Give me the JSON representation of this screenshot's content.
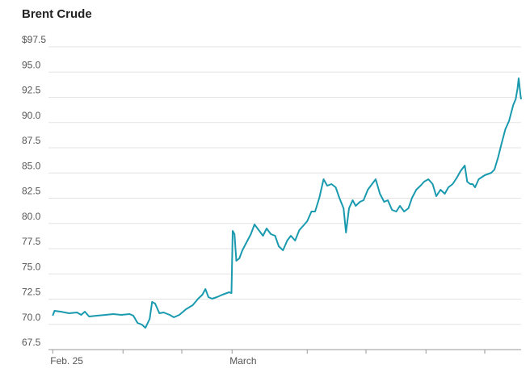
{
  "chart_data": {
    "type": "line",
    "title": "Brent Crude",
    "x": [
      0,
      0.03,
      0.13,
      0.27,
      0.4,
      0.47,
      0.53,
      0.6,
      0.73,
      0.87,
      1.0,
      1.13,
      1.27,
      1.33,
      1.4,
      1.47,
      1.53,
      1.6,
      1.64,
      1.69,
      1.76,
      1.83,
      1.93,
      2.0,
      2.09,
      2.2,
      2.31,
      2.4,
      2.47,
      2.52,
      2.57,
      2.63,
      2.71,
      2.8,
      2.91,
      2.95,
      2.97,
      3.0,
      3.03,
      3.08,
      3.13,
      3.2,
      3.27,
      3.33,
      3.4,
      3.47,
      3.53,
      3.6,
      3.67,
      3.73,
      3.8,
      3.87,
      3.93,
      4.0,
      4.07,
      4.13,
      4.2,
      4.27,
      4.33,
      4.4,
      4.47,
      4.53,
      4.6,
      4.67,
      4.73,
      4.8,
      4.84,
      4.89,
      4.95,
      5.0,
      5.07,
      5.13,
      5.2,
      5.27,
      5.33,
      5.4,
      5.47,
      5.53,
      5.6,
      5.67,
      5.73,
      5.8,
      5.87,
      5.93,
      6.0,
      6.07,
      6.13,
      6.2,
      6.27,
      6.33,
      6.4,
      6.47,
      6.53,
      6.6,
      6.67,
      6.73,
      6.8,
      6.84,
      6.89,
      6.93,
      6.97,
      7.03,
      7.13,
      7.24,
      7.29,
      7.35,
      7.4,
      7.47,
      7.53,
      7.6,
      7.64,
      7.67,
      7.69,
      7.72,
      7.73
    ],
    "series": [
      {
        "color": "#1a9aaf",
        "values": [
          70.86,
          71.34,
          71.26,
          71.1,
          71.18,
          70.94,
          71.26,
          70.78,
          70.86,
          70.94,
          71.02,
          70.94,
          71.02,
          70.86,
          70.14,
          69.98,
          69.66,
          70.54,
          72.22,
          72.06,
          71.1,
          71.18,
          70.94,
          70.7,
          70.94,
          71.5,
          71.9,
          72.54,
          72.94,
          73.5,
          72.7,
          72.54,
          72.7,
          72.94,
          73.18,
          73.1,
          79.26,
          78.94,
          76.3,
          76.54,
          77.34,
          78.14,
          78.94,
          79.9,
          79.34,
          78.78,
          79.5,
          78.94,
          78.78,
          77.74,
          77.34,
          78.3,
          78.78,
          78.3,
          79.34,
          79.74,
          80.22,
          81.18,
          81.18,
          82.54,
          84.38,
          83.74,
          83.9,
          83.58,
          82.54,
          81.5,
          79.1,
          81.5,
          82.3,
          81.74,
          82.14,
          82.3,
          83.34,
          83.9,
          84.38,
          82.94,
          82.14,
          82.3,
          81.34,
          81.18,
          81.74,
          81.18,
          81.5,
          82.54,
          83.34,
          83.74,
          84.14,
          84.38,
          83.9,
          82.7,
          83.34,
          82.94,
          83.58,
          83.9,
          84.54,
          85.18,
          85.74,
          84.14,
          83.9,
          83.9,
          83.58,
          84.38,
          84.78,
          85.02,
          85.34,
          86.54,
          87.74,
          89.34,
          90.14,
          91.74,
          92.3,
          93.34,
          94.38,
          92.7,
          92.3
        ]
      }
    ],
    "xlim": [
      -0.07,
      7.73
    ],
    "xticks": [
      {
        "value": 0,
        "label": "Feb. 25"
      },
      {
        "value": 1.16,
        "label": null
      },
      {
        "value": 2.13,
        "label": null
      },
      {
        "value": 2.96,
        "label": "March"
      },
      {
        "value": 4.2,
        "label": null
      },
      {
        "value": 5.17,
        "label": null
      },
      {
        "value": 6.16,
        "label": null
      },
      {
        "value": 7.13,
        "label": null
      }
    ],
    "ylim": [
      67.5,
      97.5
    ],
    "yticks": [
      {
        "value": 67.5,
        "label": "67.5"
      },
      {
        "value": 70,
        "label": "70.0"
      },
      72.5,
      {
        "value": 75,
        "label": "75.0"
      },
      77.5,
      {
        "value": 80,
        "label": "80.0"
      },
      82.5,
      {
        "value": 85,
        "label": "85.0"
      },
      87.5,
      {
        "value": 90,
        "label": "90.0"
      },
      92.5,
      {
        "value": 95,
        "label": "95.0"
      },
      {
        "value": 97.5,
        "label": "$97.5"
      }
    ],
    "grid": true
  }
}
